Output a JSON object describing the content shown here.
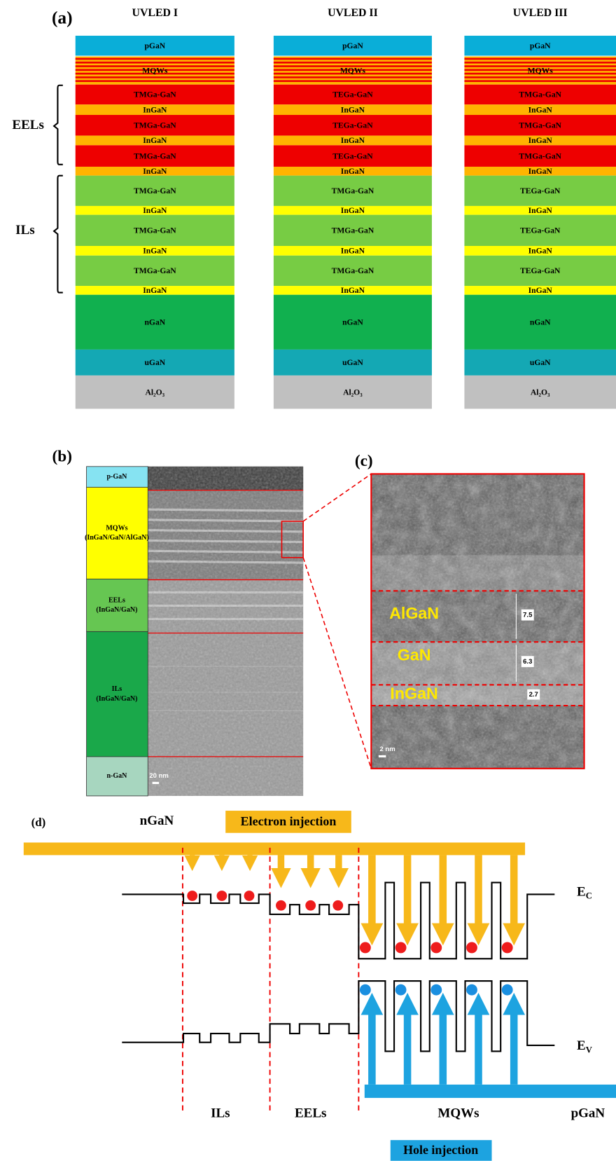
{
  "panel_a": {
    "label": "(a)",
    "columns": [
      {
        "title": "UVLED I",
        "layers": [
          "pGaN",
          "MQWs",
          "TMGa-GaN",
          "InGaN",
          "TMGa-GaN",
          "InGaN",
          "TMGa-GaN",
          "InGaN",
          "TMGa-GaN",
          "InGaN",
          "TMGa-GaN",
          "InGaN",
          "TMGa-GaN",
          "InGaN",
          "nGaN",
          "uGaN",
          "Al₂O₃"
        ]
      },
      {
        "title": "UVLED II",
        "layers": [
          "pGaN",
          "MQWs",
          "TEGa-GaN",
          "InGaN",
          "TEGa-GaN",
          "InGaN",
          "TEGa-GaN",
          "InGaN",
          "TMGa-GaN",
          "InGaN",
          "TMGa-GaN",
          "InGaN",
          "TMGa-GaN",
          "InGaN",
          "nGaN",
          "uGaN",
          "Al₂O₃"
        ]
      },
      {
        "title": "UVLED III",
        "layers": [
          "pGaN",
          "MQWs",
          "TMGa-GaN",
          "InGaN",
          "TMGa-GaN",
          "InGaN",
          "TMGa-GaN",
          "InGaN",
          "TEGa-GaN",
          "InGaN",
          "TEGa-GaN",
          "InGaN",
          "TEGa-GaN",
          "InGaN",
          "nGaN",
          "uGaN",
          "Al₂O₃"
        ]
      }
    ],
    "brackets": [
      "EELs",
      "ILs"
    ]
  },
  "panel_b": {
    "label": "(b)",
    "regions": [
      [
        "p-GaN"
      ],
      [
        "MQWs",
        "(InGaN/GaN/AlGaN)"
      ],
      [
        "EELs",
        "(InGaN/GaN)"
      ],
      [
        "ILs",
        "(InGaN/GaN)"
      ],
      [
        "n-GaN"
      ]
    ],
    "scale": "20 nm"
  },
  "panel_c": {
    "label": "(c)",
    "layers": [
      "AlGaN",
      "GaN",
      "InGaN"
    ],
    "thickness": [
      "7.5",
      "6.3",
      "2.7"
    ],
    "scale": "2 nm"
  },
  "panel_d": {
    "label": "(d)",
    "left": "nGaN",
    "electron": "Electron injection",
    "ec": {
      "main": "E",
      "sub": "C"
    },
    "ev": {
      "main": "E",
      "sub": "V"
    },
    "regions": [
      "ILs",
      "EELs",
      "MQWs"
    ],
    "right": "pGaN",
    "hole": "Hole injection"
  }
}
